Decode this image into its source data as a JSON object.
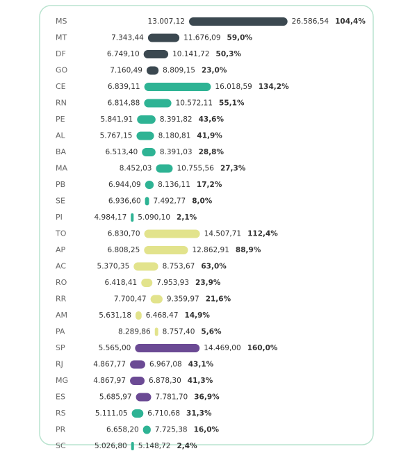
{
  "chart_data": {
    "type": "range-bar",
    "categories": [
      "MS",
      "MT",
      "DF",
      "GO",
      "CE",
      "RN",
      "PE",
      "AL",
      "BA",
      "MA",
      "PB",
      "SE",
      "PI",
      "TO",
      "AP",
      "AC",
      "RO",
      "RR",
      "AM",
      "PA",
      "SP",
      "RJ",
      "MG",
      "ES",
      "RS",
      "PR",
      "SC"
    ],
    "low": {
      "values": [
        13007.12,
        7343.44,
        6749.1,
        7160.49,
        6839.11,
        6814.88,
        5841.91,
        5767.15,
        6513.4,
        8452.03,
        6944.09,
        6936.6,
        4984.17,
        6830.7,
        6808.25,
        5370.35,
        6418.41,
        7700.47,
        5631.18,
        8289.86,
        5565.0,
        4867.77,
        4867.97,
        5685.97,
        5111.05,
        6658.2,
        5026.8
      ],
      "value_labels": [
        "13.007,12",
        "7.343,44",
        "6.749,10",
        "7.160,49",
        "6.839,11",
        "6.814,88",
        "5.841,91",
        "5.767,15",
        "6.513,40",
        "8.452,03",
        "6.944,09",
        "6.936,60",
        "4.984,17",
        "6.830,70",
        "6.808,25",
        "5.370,35",
        "6.418,41",
        "7.700,47",
        "5.631,18",
        "8.289,86",
        "5.565,00",
        "4.867,77",
        "4.867,97",
        "5.685,97",
        "5.111,05",
        "6.658,20",
        "5.026,80"
      ]
    },
    "high": {
      "values": [
        26586.54,
        11676.09,
        10141.72,
        8809.15,
        16018.59,
        10572.11,
        8391.82,
        8180.81,
        8391.03,
        10755.56,
        8136.11,
        7492.77,
        5090.1,
        14507.71,
        12862.91,
        8753.67,
        7953.93,
        9359.97,
        6468.47,
        8757.4,
        14469.0,
        6967.08,
        6878.3,
        7781.7,
        6710.68,
        7725.38,
        5148.72
      ],
      "value_labels": [
        "26.586,54",
        "11.676,09",
        "10.141,72",
        "8.809,15",
        "16.018,59",
        "10.572,11",
        "8.391,82",
        "8.180,81",
        "8.391,03",
        "10.755,56",
        "8.136,11",
        "7.492,77",
        "5.090,10",
        "14.507,71",
        "12.862,91",
        "8.753,67",
        "7.953,93",
        "9.359,97",
        "6.468,47",
        "8.757,40",
        "14.469,00",
        "6.967,08",
        "6.878,30",
        "7.781,70",
        "6.710,68",
        "7.725,38",
        "5.148,72"
      ]
    },
    "change": {
      "values": [
        104.4,
        59.0,
        50.3,
        23.0,
        134.2,
        55.1,
        43.6,
        41.9,
        28.8,
        27.3,
        17.2,
        8.0,
        2.1,
        112.4,
        88.9,
        63.0,
        23.9,
        21.6,
        14.9,
        5.6,
        160.0,
        43.1,
        41.3,
        36.9,
        31.3,
        16.0,
        2.4
      ],
      "value_labels": [
        "104,4%",
        "59,0%",
        "50,3%",
        "23,0%",
        "134,2%",
        "55,1%",
        "43,6%",
        "41,9%",
        "28,8%",
        "27,3%",
        "17,2%",
        "8,0%",
        "2,1%",
        "112,4%",
        "88,9%",
        "63,0%",
        "23,9%",
        "21,6%",
        "14,9%",
        "5,6%",
        "160,0%",
        "43,1%",
        "41,3%",
        "36,9%",
        "31,3%",
        "16,0%",
        "2,4%"
      ]
    },
    "colors": [
      "#3b4850",
      "#3b4850",
      "#3b4850",
      "#3b4850",
      "#2eb394",
      "#2eb394",
      "#2eb394",
      "#2eb394",
      "#2eb394",
      "#2eb394",
      "#2eb394",
      "#2eb394",
      "#2eb394",
      "#e2e38c",
      "#e2e38c",
      "#e2e38c",
      "#e2e38c",
      "#e2e38c",
      "#e2e38c",
      "#e2e38c",
      "#6b4a94",
      "#6b4a94",
      "#6b4a94",
      "#6b4a94",
      "#2eb394",
      "#2eb394",
      "#2eb394"
    ],
    "label_colors": [
      "#3b4850",
      "#3b4850",
      "#3b4850",
      "#3b4850",
      "#2eb394",
      "#2eb394",
      "#2eb394",
      "#2eb394",
      "#2eb394",
      "#2eb394",
      "#2eb394",
      "#2eb394",
      "#2eb394",
      "#3b4850",
      "#3b4850",
      "#3b4850",
      "#3b4850",
      "#3b4850",
      "#3b4850",
      "#3b4850",
      "#6b4a94",
      "#6b4a94",
      "#6b4a94",
      "#6b4a94",
      "#2eb394",
      "#2eb394",
      "#2eb394"
    ],
    "xlim": [
      4000,
      27000
    ]
  }
}
